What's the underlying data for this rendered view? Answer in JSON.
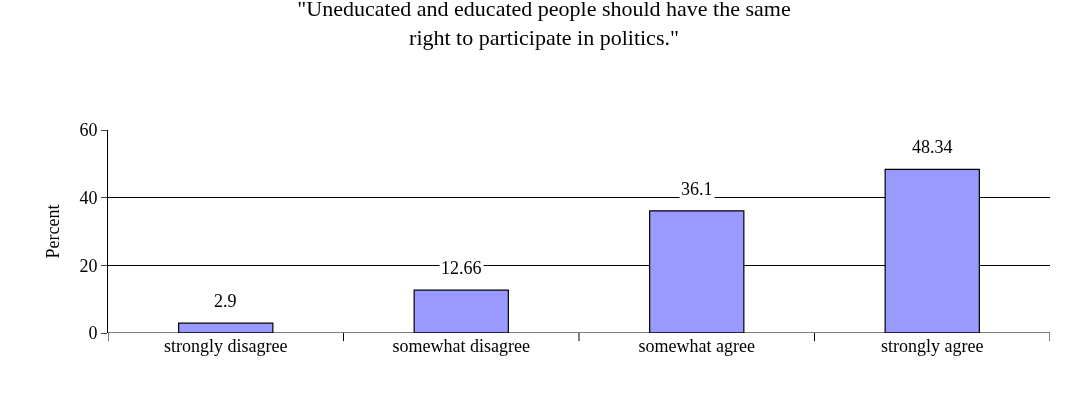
{
  "chart_data": {
    "type": "bar",
    "title": "\"Uneducated and educated people should have the same right to participate in politics.\"",
    "ylabel": "Percent",
    "categories": [
      "strongly disagree",
      "somewhat disagree",
      "somewhat agree",
      "strongly agree"
    ],
    "values": [
      2.9,
      12.66,
      36.1,
      48.34
    ],
    "color": "#9999ff",
    "data_labels": true,
    "ylim": [
      0,
      60
    ],
    "yticks": [
      0,
      20,
      40,
      60
    ],
    "grid": "y",
    "legend": false
  }
}
